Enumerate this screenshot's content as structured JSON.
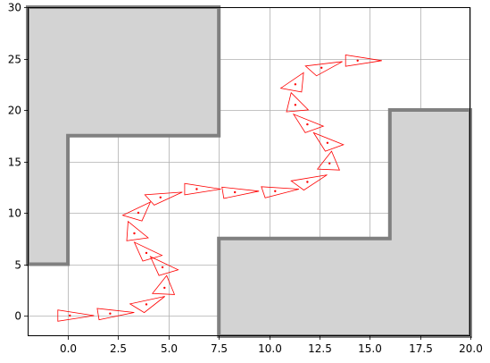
{
  "chart_data": {
    "type": "scatter",
    "title": "",
    "xlabel": "",
    "ylabel": "",
    "xlim": [
      -2,
      20
    ],
    "ylim": [
      -2,
      30
    ],
    "grid": true,
    "x_ticks": [
      0.0,
      2.5,
      5.0,
      7.5,
      10.0,
      12.5,
      15.0,
      17.5,
      20.0
    ],
    "x_tick_labels": [
      "0.0",
      "2.5",
      "5.0",
      "7.5",
      "10.0",
      "12.5",
      "15.0",
      "17.5",
      "20.0"
    ],
    "y_ticks": [
      0,
      5,
      10,
      15,
      20,
      25,
      30
    ],
    "y_tick_labels": [
      "0",
      "5",
      "10",
      "15",
      "20",
      "25",
      "30"
    ],
    "colors": {
      "obstacle_fill": "#d3d3d3",
      "obstacle_edge": "#808080",
      "pose": "#ff0000",
      "grid": "#b0b0b0"
    },
    "obstacles": [
      [
        [
          -2,
          5
        ],
        [
          0,
          5
        ],
        [
          0,
          17.5
        ],
        [
          7.5,
          17.5
        ],
        [
          7.5,
          30
        ],
        [
          -2,
          30
        ]
      ],
      [
        [
          7.5,
          -2
        ],
        [
          20,
          -2
        ],
        [
          20,
          20
        ],
        [
          16,
          20
        ],
        [
          16,
          7.5
        ],
        [
          7.5,
          7.5
        ]
      ]
    ],
    "poses": [
      {
        "x": 0.1,
        "y": 0.0,
        "heading_deg": 0
      },
      {
        "x": 2.1,
        "y": 0.2,
        "heading_deg": 5
      },
      {
        "x": 3.9,
        "y": 1.1,
        "heading_deg": 40
      },
      {
        "x": 4.8,
        "y": 2.7,
        "heading_deg": 85
      },
      {
        "x": 4.7,
        "y": 4.7,
        "heading_deg": 120
      },
      {
        "x": 3.9,
        "y": 6.1,
        "heading_deg": 120
      },
      {
        "x": 3.3,
        "y": 8.0,
        "heading_deg": 105
      },
      {
        "x": 3.5,
        "y": 10.0,
        "heading_deg": 60
      },
      {
        "x": 4.6,
        "y": 11.5,
        "heading_deg": 25
      },
      {
        "x": 6.4,
        "y": 12.3,
        "heading_deg": 0
      },
      {
        "x": 8.3,
        "y": 12.0,
        "heading_deg": 5
      },
      {
        "x": 10.3,
        "y": 12.1,
        "heading_deg": 10
      },
      {
        "x": 11.9,
        "y": 13.0,
        "heading_deg": 35
      },
      {
        "x": 13.0,
        "y": 14.8,
        "heading_deg": 85
      },
      {
        "x": 12.9,
        "y": 16.8,
        "heading_deg": 125
      },
      {
        "x": 11.9,
        "y": 18.6,
        "heading_deg": 125
      },
      {
        "x": 11.3,
        "y": 20.5,
        "heading_deg": 100
      },
      {
        "x": 11.3,
        "y": 22.5,
        "heading_deg": 70
      },
      {
        "x": 12.6,
        "y": 24.1,
        "heading_deg": 30
      },
      {
        "x": 14.4,
        "y": 24.8,
        "heading_deg": 0
      }
    ]
  }
}
